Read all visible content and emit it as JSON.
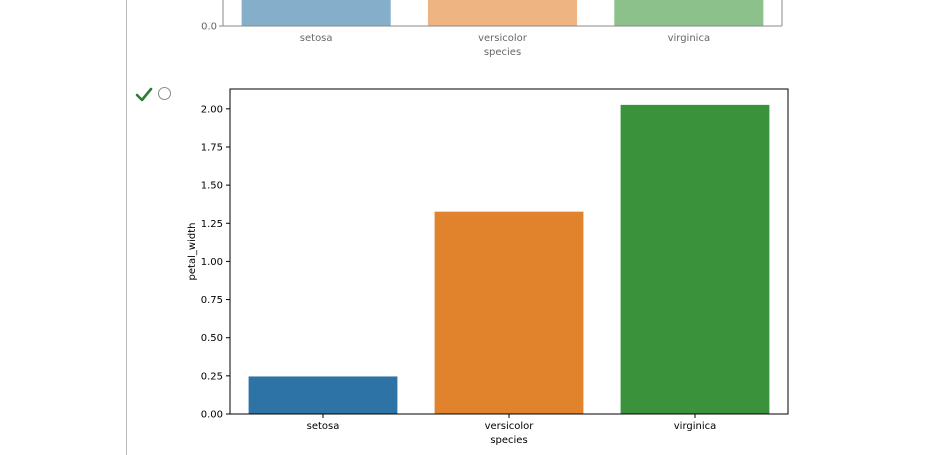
{
  "colors": {
    "setosa": "#2e73a6",
    "versicolor": "#e1822c",
    "virginica": "#3a933a",
    "check": "#2e7d32"
  },
  "answer_option": {
    "state": "selected",
    "check_icon": "check-icon",
    "radio_icon": "radio-circle-icon"
  },
  "chart_data": [
    {
      "type": "bar",
      "categories": [
        "setosa",
        "versicolor",
        "virginica"
      ],
      "xlabel": "species",
      "ylabel": "",
      "yticks": [
        "0.0"
      ],
      "colors": [
        "#85aecb",
        "#eeb583",
        "#8cc18c"
      ],
      "partial": true
    },
    {
      "type": "bar",
      "categories": [
        "setosa",
        "versicolor",
        "virginica"
      ],
      "values": [
        0.246,
        1.326,
        2.026
      ],
      "xlabel": "species",
      "ylabel": "petal_width",
      "ylim": [
        0,
        2.13
      ],
      "yticks": [
        "0.00",
        "0.25",
        "0.50",
        "0.75",
        "1.00",
        "1.25",
        "1.50",
        "1.75",
        "2.00"
      ],
      "grid": false
    }
  ]
}
